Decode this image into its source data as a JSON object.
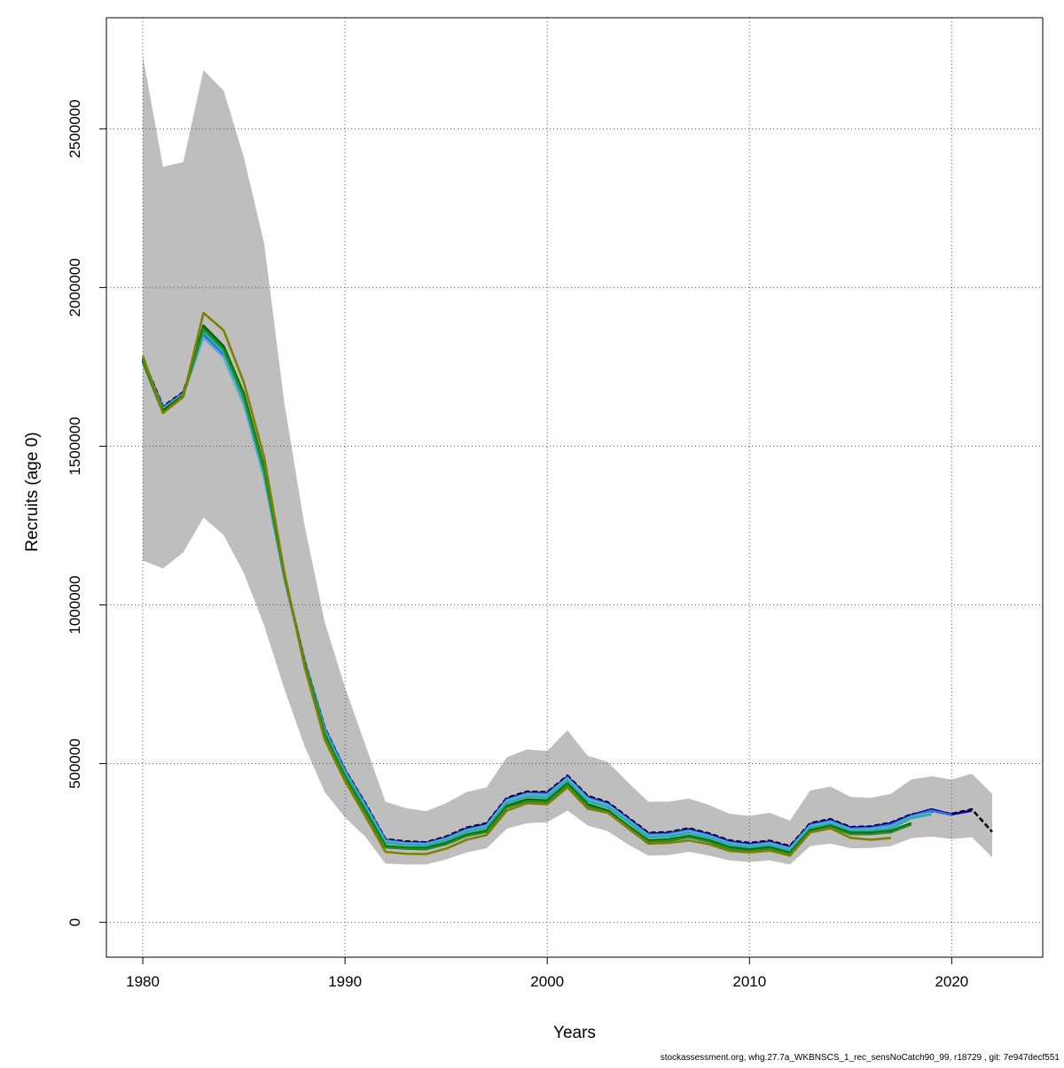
{
  "chart_data": {
    "type": "line",
    "title": "",
    "xlabel": "Years",
    "ylabel": "Recruits (age 0)",
    "xlim": [
      1978.2,
      2024.5
    ],
    "ylim": [
      -110000,
      2850000
    ],
    "xticks": [
      1980,
      1990,
      2000,
      2010,
      2020
    ],
    "yticks": [
      0,
      500000,
      1000000,
      1500000,
      2000000,
      2500000
    ],
    "grid": true,
    "grid_style": "dotted",
    "legend": "none",
    "footer": "stockassessment.org, whg.27.7a_WKBNSCS_1_rec_sensNoCatch90_99, r18729 , git: 7e947decf551",
    "colors": {
      "band": "#bebebe",
      "grid": "#5a5a5a",
      "series": [
        "#000000",
        "#00008b",
        "#4169e1",
        "#5fa8d3",
        "#20b2aa",
        "#006400",
        "#228b22",
        "#808000"
      ]
    },
    "confidence_band": {
      "x": [
        1980,
        1981,
        1982,
        1983,
        1984,
        1985,
        1986,
        1987,
        1988,
        1989,
        1990,
        1991,
        1992,
        1993,
        1994,
        1995,
        1996,
        1997,
        1998,
        1999,
        2000,
        2001,
        2002,
        2003,
        2004,
        2005,
        2006,
        2007,
        2008,
        2009,
        2010,
        2011,
        2012,
        2013,
        2014,
        2015,
        2016,
        2017,
        2018,
        2019,
        2020,
        2021,
        2022
      ],
      "upper": [
        2730000,
        2380000,
        2395000,
        2685000,
        2620000,
        2410000,
        2140000,
        1635000,
        1250000,
        945000,
        740000,
        560000,
        380000,
        360000,
        350000,
        375000,
        410000,
        425000,
        520000,
        545000,
        540000,
        605000,
        525000,
        505000,
        440000,
        380000,
        380000,
        390000,
        370000,
        342000,
        335000,
        345000,
        320000,
        415000,
        428000,
        395000,
        392000,
        405000,
        450000,
        460000,
        450000,
        468000,
        405000
      ],
      "lower": [
        1140000,
        1115000,
        1165000,
        1275000,
        1220000,
        1100000,
        935000,
        735000,
        555000,
        410000,
        330000,
        270000,
        185000,
        182000,
        182000,
        198000,
        220000,
        233000,
        295000,
        312000,
        315000,
        352000,
        305000,
        287000,
        245000,
        210000,
        212000,
        222000,
        210000,
        195000,
        190000,
        195000,
        182000,
        240000,
        248000,
        233000,
        234000,
        240000,
        265000,
        270000,
        262000,
        268000,
        205000
      ]
    },
    "series": [
      {
        "x": [
          1980,
          1981,
          1982,
          1983,
          1984,
          1985,
          1986,
          1987,
          1988,
          1989,
          1990,
          1991,
          1992,
          1993,
          1994,
          1995,
          1996,
          1997,
          1998,
          1999,
          2000,
          2001,
          2002,
          2003,
          2004,
          2005,
          2006,
          2007,
          2008,
          2009,
          2010,
          2011,
          2012,
          2013,
          2014,
          2015,
          2016,
          2017,
          2018,
          2019,
          2020,
          2021,
          2022
        ],
        "values": [
          1775000,
          1625000,
          1670000,
          1855000,
          1790000,
          1640000,
          1410000,
          1090000,
          825000,
          612000,
          480000,
          375000,
          262000,
          255000,
          252000,
          270000,
          298000,
          312000,
          392000,
          412000,
          410000,
          462000,
          398000,
          378000,
          330000,
          282000,
          284000,
          296000,
          280000,
          258000,
          250000,
          257000,
          240000,
          312000,
          325000,
          300000,
          302000,
          314000,
          340000,
          350000,
          342000,
          356000,
          285000
        ]
      },
      {
        "x": [
          1980,
          1981,
          1982,
          1983,
          1984,
          1985,
          1986,
          1987,
          1988,
          1989,
          1990,
          1991,
          1992,
          1993,
          1994,
          1995,
          1996,
          1997,
          1998,
          1999,
          2000,
          2001,
          2002,
          2003,
          2004,
          2005,
          2006,
          2007,
          2008,
          2009,
          2010,
          2011,
          2012,
          2013,
          2014,
          2015,
          2016,
          2017,
          2018,
          2019,
          2020,
          2021
        ],
        "values": [
          1772000,
          1622000,
          1668000,
          1852000,
          1787000,
          1637000,
          1407000,
          1087000,
          822000,
          610000,
          478000,
          372000,
          260000,
          252000,
          250000,
          267000,
          295000,
          309000,
          389000,
          409000,
          407000,
          459000,
          395000,
          375000,
          327000,
          279000,
          281000,
          293000,
          277000,
          255000,
          247000,
          254000,
          237000,
          309000,
          322000,
          298000,
          300000,
          312000,
          338000,
          356000,
          340000,
          352000
        ]
      },
      {
        "x": [
          1980,
          1981,
          1982,
          1983,
          1984,
          1985,
          1986,
          1987,
          1988,
          1989,
          1990,
          1991,
          1992,
          1993,
          1994,
          1995,
          1996,
          1997,
          1998,
          1999,
          2000,
          2001,
          2002,
          2003,
          2004,
          2005,
          2006,
          2007,
          2008,
          2009,
          2010,
          2011,
          2012,
          2013,
          2014,
          2015,
          2016,
          2017,
          2018,
          2019,
          2020
        ],
        "values": [
          1770000,
          1620000,
          1666000,
          1850000,
          1785000,
          1635000,
          1405000,
          1085000,
          820000,
          608000,
          476000,
          370000,
          258000,
          250000,
          248000,
          265000,
          292000,
          306000,
          386000,
          406000,
          404000,
          456000,
          392000,
          372000,
          324000,
          276000,
          278000,
          290000,
          274000,
          252000,
          244000,
          251000,
          234000,
          306000,
          319000,
          295000,
          297000,
          308000,
          335000,
          352000,
          338000
        ]
      },
      {
        "x": [
          1980,
          1981,
          1982,
          1983,
          1984,
          1985,
          1986,
          1987,
          1988,
          1989,
          1990,
          1991,
          1992,
          1993,
          1994,
          1995,
          1996,
          1997,
          1998,
          1999,
          2000,
          2001,
          2002,
          2003,
          2004,
          2005,
          2006,
          2007,
          2008,
          2009,
          2010,
          2011,
          2012,
          2013,
          2014,
          2015,
          2016,
          2017,
          2018,
          2019
        ],
        "values": [
          1768000,
          1618000,
          1664000,
          1842000,
          1780000,
          1630000,
          1402000,
          1082000,
          818000,
          605000,
          473000,
          367000,
          255000,
          248000,
          246000,
          262000,
          289000,
          303000,
          383000,
          403000,
          401000,
          453000,
          389000,
          369000,
          321000,
          273000,
          275000,
          287000,
          271000,
          249000,
          241000,
          248000,
          231000,
          303000,
          316000,
          292000,
          294000,
          302000,
          332000,
          345000
        ]
      },
      {
        "x": [
          1980,
          1981,
          1982,
          1983,
          1984,
          1985,
          1986,
          1987,
          1988,
          1989,
          1990,
          1991,
          1992,
          1993,
          1994,
          1995,
          1996,
          1997,
          1998,
          1999,
          2000,
          2001,
          2002,
          2003,
          2004,
          2005,
          2006,
          2007,
          2008,
          2009,
          2010,
          2011,
          2012,
          2013,
          2014,
          2015,
          2016,
          2017,
          2018,
          2019
        ],
        "values": [
          1772000,
          1615000,
          1662000,
          1860000,
          1795000,
          1645000,
          1412000,
          1090000,
          822000,
          604000,
          470000,
          364000,
          250000,
          244000,
          242000,
          258000,
          285000,
          298000,
          376000,
          396000,
          394000,
          446000,
          382000,
          362000,
          316000,
          268000,
          270000,
          281000,
          266000,
          244000,
          236000,
          243000,
          226000,
          298000,
          311000,
          287000,
          288000,
          296000,
          328000,
          340000
        ]
      },
      {
        "x": [
          1980,
          1981,
          1982,
          1983,
          1984,
          1985,
          1986,
          1987,
          1988,
          1989,
          1990,
          1991,
          1992,
          1993,
          1994,
          1995,
          1996,
          1997,
          1998,
          1999,
          2000,
          2001,
          2002,
          2003,
          2004,
          2005,
          2006,
          2007,
          2008,
          2009,
          2010,
          2011,
          2012,
          2013,
          2014,
          2015,
          2016,
          2017,
          2018
        ],
        "values": [
          1770000,
          1612000,
          1660000,
          1880000,
          1815000,
          1665000,
          1432000,
          1095000,
          815000,
          590000,
          458000,
          352000,
          240000,
          235000,
          234000,
          250000,
          276000,
          289000,
          367000,
          387000,
          384000,
          437000,
          372000,
          352000,
          304000,
          258000,
          261000,
          272000,
          258000,
          236000,
          229000,
          236000,
          219000,
          290000,
          304000,
          282000,
          282000,
          288000,
          312000
        ]
      },
      {
        "x": [
          1980,
          1981,
          1982,
          1983,
          1984,
          1985,
          1986,
          1987,
          1988,
          1989,
          1990,
          1991,
          1992,
          1993,
          1994,
          1995,
          1996,
          1997,
          1998,
          1999,
          2000,
          2001,
          2002,
          2003,
          2004,
          2005,
          2006,
          2007,
          2008,
          2009,
          2010,
          2011,
          2012,
          2013,
          2014,
          2015,
          2016,
          2017,
          2018
        ],
        "values": [
          1765000,
          1605000,
          1658000,
          1870000,
          1805000,
          1655000,
          1425000,
          1092000,
          812000,
          586000,
          455000,
          348000,
          236000,
          232000,
          230000,
          246000,
          272000,
          285000,
          362000,
          382000,
          379000,
          432000,
          366000,
          347000,
          300000,
          254000,
          257000,
          268000,
          254000,
          232000,
          225000,
          232000,
          215000,
          286000,
          300000,
          278000,
          278000,
          284000,
          308000
        ]
      },
      {
        "x": [
          1980,
          1981,
          1982,
          1983,
          1984,
          1985,
          1986,
          1987,
          1988,
          1989,
          1990,
          1991,
          1992,
          1993,
          1994,
          1995,
          1996,
          1997,
          1998,
          1999,
          2000,
          2001,
          2002,
          2003,
          2004,
          2005,
          2006,
          2007,
          2008,
          2009,
          2010,
          2011,
          2012,
          2013,
          2014,
          2015,
          2016,
          2017
        ],
        "values": [
          1785000,
          1605000,
          1655000,
          1920000,
          1865000,
          1700000,
          1465000,
          1102000,
          805000,
          575000,
          445000,
          335000,
          222000,
          216000,
          215000,
          232000,
          260000,
          275000,
          352000,
          375000,
          372000,
          425000,
          358000,
          345000,
          296000,
          248000,
          250000,
          258000,
          246000,
          225000,
          220000,
          226000,
          210000,
          283000,
          296000,
          266000,
          260000,
          266000
        ]
      }
    ]
  }
}
